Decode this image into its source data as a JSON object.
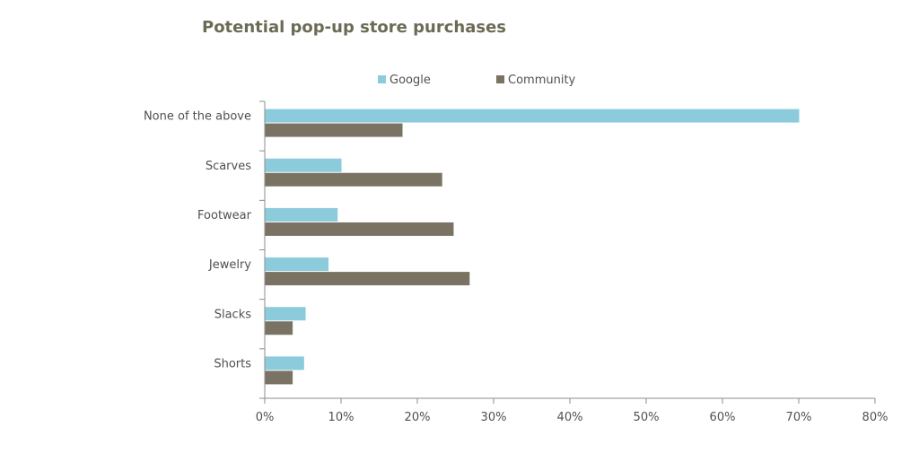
{
  "chart_data": {
    "type": "bar",
    "orientation": "horizontal",
    "title": "Potential pop-up store purchases",
    "xlabel": "",
    "ylabel": "",
    "categories": [
      "None of the above",
      "Scarves",
      "Footwear",
      "Jewelry",
      "Slacks",
      "Shorts"
    ],
    "series": [
      {
        "name": "Google",
        "color": "#8ccbdb",
        "values": [
          70,
          10,
          9.5,
          8.3,
          5.3,
          5.1
        ]
      },
      {
        "name": "Community",
        "color": "#7a7363",
        "values": [
          18,
          23.2,
          24.7,
          26.8,
          3.6,
          3.6
        ]
      }
    ],
    "xlim": [
      0,
      80
    ],
    "xticks": [
      "0%",
      "10%",
      "20%",
      "30%",
      "40%",
      "50%",
      "60%",
      "70%",
      "80%"
    ],
    "grid": false,
    "legend_position": "top"
  }
}
